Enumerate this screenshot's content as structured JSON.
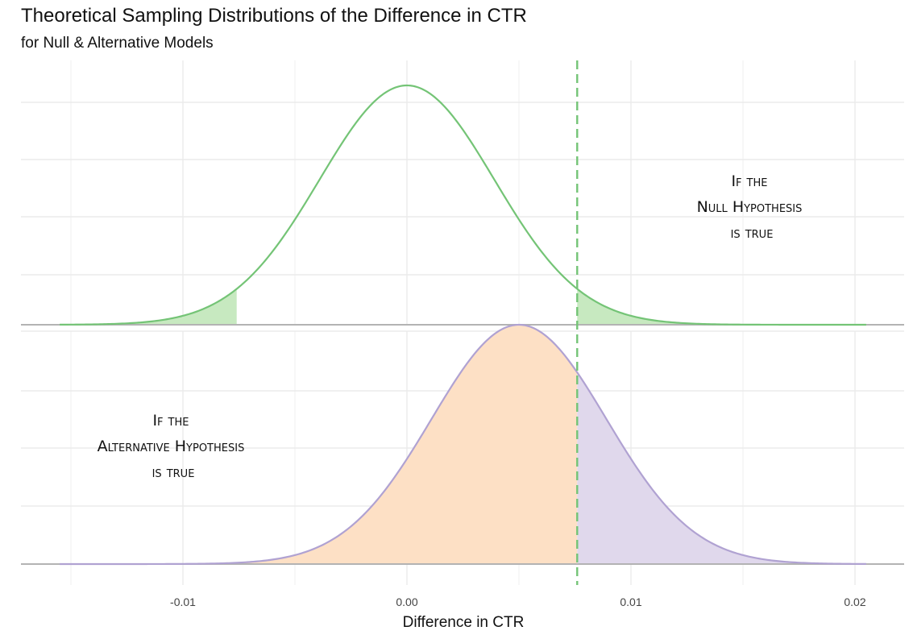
{
  "chart_data": {
    "type": "area",
    "title": "Theoretical Sampling Distributions of the Difference in CTR",
    "subtitle": "for Null & Alternative Models",
    "xlabel": "Difference in CTR",
    "ylabel": "",
    "xlim": [
      -0.0155,
      0.0205
    ],
    "x_ticks": [
      -0.01,
      0.0,
      0.01,
      0.02
    ],
    "x_tick_labels": [
      "-0.01",
      "0.00",
      "0.01",
      "0.02"
    ],
    "critical_value": 0.0076,
    "panels": [
      {
        "name": "null",
        "annotation": [
          "If the",
          "Null Hypothesis",
          "is true"
        ],
        "distribution": "normal",
        "mean": 0.0,
        "sd": 0.0039,
        "x_range": [
          -0.0155,
          0.0205
        ],
        "shaded_regions": [
          {
            "from": -0.0155,
            "to": -0.0076,
            "color": "#c7e9c0"
          },
          {
            "from": 0.0076,
            "to": 0.0205,
            "color": "#c7e9c0"
          }
        ],
        "line_color": "#74c476"
      },
      {
        "name": "alternative",
        "annotation": [
          "If the",
          "Alternative Hypothesis",
          "is true"
        ],
        "distribution": "normal",
        "mean": 0.005,
        "sd": 0.0039,
        "x_range": [
          -0.0155,
          0.0205
        ],
        "shaded_regions": [
          {
            "from": -0.0155,
            "to": 0.0076,
            "color": "#fde0c5"
          },
          {
            "from": 0.0076,
            "to": 0.0205,
            "color": "#e0d8ec"
          }
        ],
        "line_color": "#b0a2d2"
      }
    ],
    "grid": true,
    "legend": "none",
    "colors": {
      "null_line": "#74c476",
      "null_fill": "#c7e9c0",
      "alt_line": "#b0a2d2",
      "alt_fill_left": "#fde0c5",
      "alt_fill_right": "#e0d8ec",
      "critical_line": "#74c476",
      "grid": "#ebebeb",
      "baseline": "#b3b3b3"
    }
  }
}
